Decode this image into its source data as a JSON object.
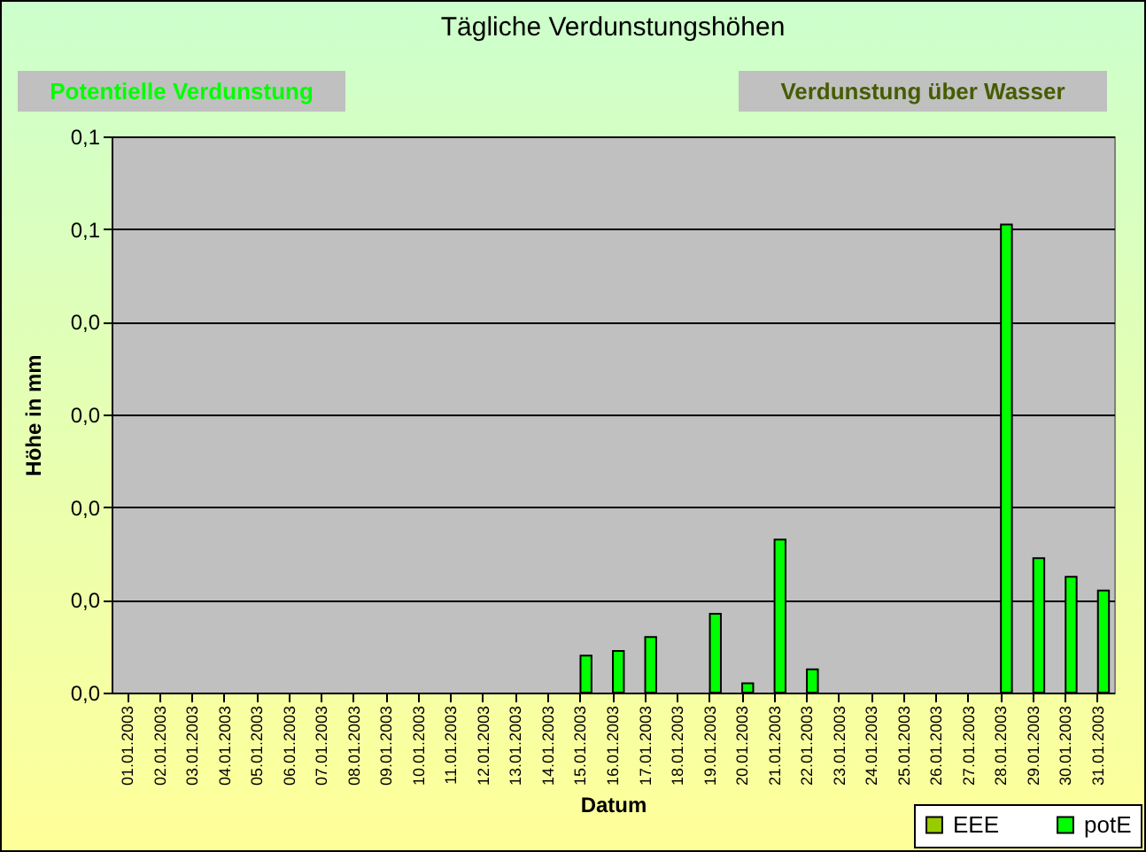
{
  "chart_data": {
    "type": "bar",
    "title": "Tägliche Verdunstungshöhen",
    "xlabel": "Datum",
    "ylabel": "Höhe in mm",
    "annotations": [
      "Potentielle Verdunstung",
      "Verdunstung über Wasser"
    ],
    "categories": [
      "01.01.2003",
      "02.01.2003",
      "03.01.2003",
      "04.01.2003",
      "05.01.2003",
      "06.01.2003",
      "07.01.2003",
      "08.01.2003",
      "09.01.2003",
      "10.01.2003",
      "11.01.2003",
      "12.01.2003",
      "13.01.2003",
      "14.01.2003",
      "15.01.2003",
      "16.01.2003",
      "17.01.2003",
      "18.01.2003",
      "19.01.2003",
      "20.01.2003",
      "21.01.2003",
      "22.01.2003",
      "23.01.2003",
      "24.01.2003",
      "25.01.2003",
      "26.01.2003",
      "27.01.2003",
      "28.01.2003",
      "29.01.2003",
      "30.01.2003",
      "31.01.2003"
    ],
    "series": [
      {
        "name": "EEE",
        "color": "#99cc00",
        "values": [
          null,
          null,
          null,
          null,
          null,
          null,
          null,
          null,
          null,
          null,
          null,
          null,
          null,
          null,
          null,
          null,
          null,
          null,
          null,
          null,
          null,
          null,
          null,
          null,
          null,
          null,
          null,
          null,
          null,
          null,
          null
        ]
      },
      {
        "name": "potE",
        "color": "#00ff00",
        "values": [
          0,
          0,
          0,
          0,
          0,
          0,
          0,
          0,
          0,
          0,
          0,
          0,
          0,
          0,
          0.004,
          0.0045,
          0.006,
          0,
          0.0085,
          0.001,
          0.0165,
          0.0025,
          0,
          0,
          0,
          0,
          0,
          0.0505,
          0.0145,
          0.0125,
          0.011
        ]
      }
    ],
    "ylim": [
      0,
      0.06
    ],
    "yticks": [
      {
        "value": 0,
        "label": "0,0"
      },
      {
        "value": 0.01,
        "label": "0,0"
      },
      {
        "value": 0.02,
        "label": "0,0"
      },
      {
        "value": 0.03,
        "label": "0,0"
      },
      {
        "value": 0.04,
        "label": "0,0"
      },
      {
        "value": 0.05,
        "label": "0,1"
      },
      {
        "value": 0.06,
        "label": "0,1"
      }
    ],
    "grid": "y",
    "legend": "bottom right"
  }
}
